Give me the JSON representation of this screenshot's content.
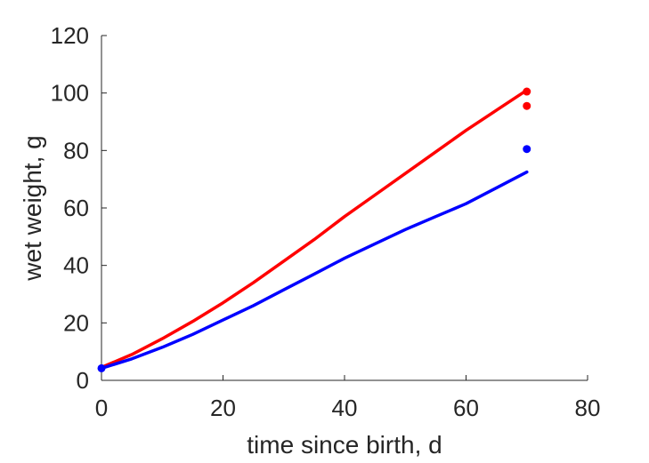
{
  "chart_data": {
    "type": "line",
    "title": "",
    "xlabel": "time since birth, d",
    "ylabel": "wet weight, g",
    "xlim": [
      0,
      80
    ],
    "ylim": [
      0,
      120
    ],
    "xticks": [
      0,
      20,
      40,
      60,
      80
    ],
    "yticks": [
      0,
      20,
      40,
      60,
      80,
      100,
      120
    ],
    "grid": false,
    "box": false,
    "series": [
      {
        "color": "#ff0000",
        "style": "line",
        "x": [
          0,
          5,
          10,
          15,
          20,
          25,
          30,
          35,
          40,
          45,
          50,
          55,
          60,
          65,
          70
        ],
        "y": [
          4.5,
          9,
          14.5,
          20.5,
          27,
          34,
          41.5,
          49,
          57,
          64.5,
          72,
          79.5,
          87,
          94,
          101
        ]
      },
      {
        "color": "#0000ff",
        "style": "line",
        "x": [
          0,
          5,
          10,
          15,
          20,
          25,
          30,
          35,
          40,
          45,
          50,
          55,
          60,
          65,
          70
        ],
        "y": [
          4.2,
          7.5,
          11.5,
          16,
          21,
          26,
          31.5,
          37,
          42.5,
          47.5,
          52.5,
          57,
          61.5,
          67,
          72.5
        ]
      },
      {
        "color": "#ff0000",
        "style": "points",
        "x": [
          70,
          70
        ],
        "y": [
          100.5,
          95.5
        ]
      },
      {
        "color": "#0000ff",
        "style": "points",
        "x": [
          0,
          70
        ],
        "y": [
          4.2,
          80.5
        ]
      }
    ]
  }
}
